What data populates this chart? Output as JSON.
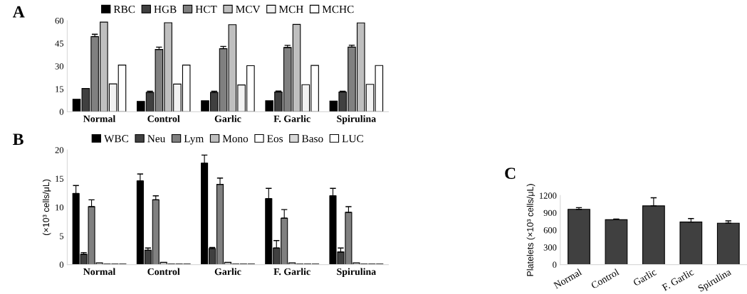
{
  "chart_data": [
    {
      "type": "bar",
      "title": "A",
      "categories": [
        "Normal",
        "Control",
        "Garlic",
        "F. Garlic",
        "Spirulina"
      ],
      "ylim": [
        0,
        60
      ],
      "yticks": [
        0,
        15,
        30,
        45,
        60
      ],
      "legend": "top",
      "grid": false,
      "series": [
        {
          "name": "RBC",
          "color": "#000000",
          "values": [
            8.2,
            6.8,
            7.2,
            7.2,
            7.0
          ]
        },
        {
          "name": "HGB",
          "color": "#404040",
          "values": [
            15.3,
            12.7,
            12.7,
            13.0,
            13.0
          ],
          "errors": [
            null,
            [
              12.7,
              13.5
            ],
            [
              12.7,
              13.5
            ],
            [
              13.0,
              13.6
            ],
            [
              13.0,
              13.5
            ]
          ]
        },
        {
          "name": "HCT",
          "color": "#808080",
          "values": [
            49.5,
            41.0,
            41.5,
            42.3,
            42.5
          ],
          "errors": [
            [
              49.5,
              51.0
            ],
            [
              41.0,
              42.5
            ],
            [
              41.5,
              43.0
            ],
            [
              42.3,
              43.7
            ],
            [
              42.5,
              43.8
            ]
          ]
        },
        {
          "name": "MCV",
          "color": "#bfbfbf",
          "values": [
            59.0,
            58.6,
            57.3,
            57.5,
            58.5
          ]
        },
        {
          "name": "MCH",
          "color": "#f2f2f2",
          "values": [
            18.3,
            18.2,
            17.6,
            17.8,
            18.0
          ]
        },
        {
          "name": "MCHC",
          "color": "#ffffff",
          "values": [
            30.7,
            30.7,
            30.3,
            30.5,
            30.4
          ]
        }
      ]
    },
    {
      "type": "bar",
      "title": "B",
      "ylabel": "(×10³ cells/μL)",
      "categories": [
        "Normal",
        "Control",
        "Garlic",
        "F. Garlic",
        "Spirulina"
      ],
      "ylim": [
        0,
        20
      ],
      "yticks": [
        0,
        5,
        10,
        15,
        20
      ],
      "legend": "top",
      "grid": false,
      "series": [
        {
          "name": "WBC",
          "color": "#000000",
          "values": [
            12.4,
            14.6,
            17.7,
            11.5,
            12.0
          ],
          "errors": [
            [
              12.4,
              13.8
            ],
            [
              14.6,
              15.8
            ],
            [
              17.7,
              19.1
            ],
            [
              11.5,
              13.3
            ],
            [
              12.0,
              13.3
            ]
          ]
        },
        {
          "name": "Neu",
          "color": "#404040",
          "values": [
            1.8,
            2.5,
            2.8,
            2.9,
            2.2
          ],
          "errors": [
            [
              1.8,
              2.1
            ],
            [
              2.5,
              2.9
            ],
            [
              2.8,
              3.0
            ],
            [
              2.9,
              4.2
            ],
            [
              2.2,
              2.9
            ]
          ]
        },
        {
          "name": "Lym",
          "color": "#808080",
          "values": [
            10.1,
            11.3,
            14.0,
            8.1,
            9.1
          ],
          "errors": [
            [
              10.1,
              11.3
            ],
            [
              11.3,
              12.0
            ],
            [
              14.0,
              15.1
            ],
            [
              8.1,
              9.6
            ],
            [
              9.1,
              10.1
            ]
          ]
        },
        {
          "name": "Mono",
          "color": "#bfbfbf",
          "values": [
            0.3,
            0.4,
            0.4,
            0.3,
            0.3
          ]
        },
        {
          "name": "Eos",
          "color": "#ffffff",
          "values": [
            0.1,
            0.1,
            0.1,
            0.1,
            0.1
          ]
        },
        {
          "name": "Baso",
          "color": "#d9d9d9",
          "values": [
            0.1,
            0.1,
            0.1,
            0.1,
            0.1
          ]
        },
        {
          "name": "LUC",
          "color": "#ffffff",
          "values": [
            0.1,
            0.1,
            0.1,
            0.1,
            0.1
          ]
        }
      ]
    },
    {
      "type": "bar",
      "title": "C",
      "ylabel": "Platelets (×10³ cells/μL)",
      "categories": [
        "Normal",
        "Control",
        "Garlic",
        "F. Garlic",
        "Spirulina"
      ],
      "ylim": [
        0,
        1200
      ],
      "yticks": [
        0,
        300,
        600,
        900,
        1200
      ],
      "legend": false,
      "grid": false,
      "series": [
        {
          "color": "#404040",
          "values": [
            960,
            780,
            1020,
            740,
            720
          ],
          "errors": [
            [
              960,
              990
            ],
            [
              780,
              790
            ],
            [
              1020,
              1160
            ],
            [
              740,
              800
            ],
            [
              720,
              760
            ]
          ]
        }
      ]
    }
  ]
}
